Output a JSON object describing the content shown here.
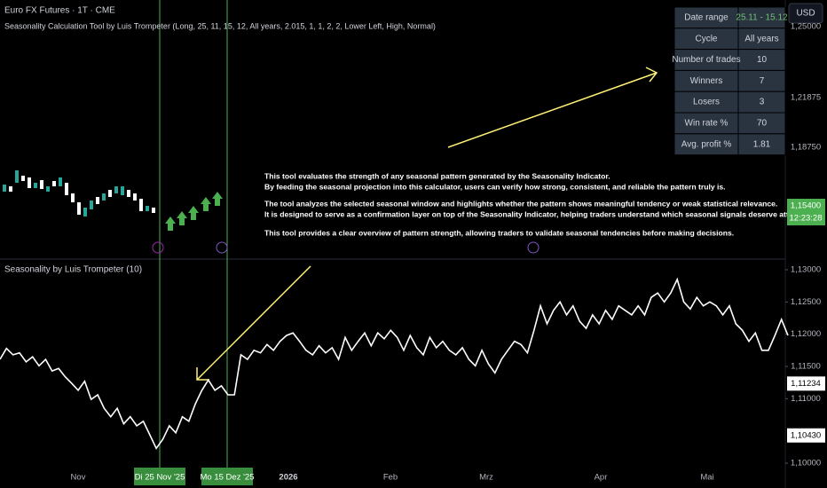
{
  "header": {
    "symbol": "Euro FX Futures · 1T · CME",
    "indicator": "Seasonality Calculation Tool by Luis Trompeter (Long, 25, 11, 15, 12, All years, 2.015, 1, 1, 2, 2, Lower Left, High, Normal)",
    "currency": "USD"
  },
  "table": {
    "rows": [
      [
        "Date range",
        "25.11 - 15.12"
      ],
      [
        "Cycle",
        "All years"
      ],
      [
        "Number of trades",
        "10"
      ],
      [
        "Winners",
        "7"
      ],
      [
        "Losers",
        "3"
      ],
      [
        "Win rate %",
        "70"
      ],
      [
        "Avg. profit %",
        "1.81"
      ]
    ]
  },
  "annotation": {
    "lines": [
      "This tool evaluates the strength of any seasonal pattern generated by the Seasonality Indicator.",
      "By feeding the seasonal projection into this calculator, users can verify how strong, consistent, and reliable the pattern truly is.",
      "The tool analyzes the selected seasonal window and highlights whether the pattern shows meaningful tendency or weak statistical relevance.",
      "It is designed to serve as a confirmation layer on top of the Seasonality Indicator, helping traders understand which seasonal signals deserve attention.",
      "This tool provides a clear overview of pattern strength, allowing traders to validate seasonal tendencies before making decisions."
    ]
  },
  "price_axis_top": {
    "labels": [
      "1,25000",
      "1,21875",
      "1,18750"
    ],
    "last_price": "1,15400",
    "countdown": "12:23:28"
  },
  "time_axis": {
    "labels": [
      "Nov",
      "2026",
      "Feb",
      "Mrz",
      "Apr",
      "Mai"
    ],
    "markers": [
      "Di 25 Nov '25",
      "Mo 15 Dez '25"
    ]
  },
  "chart_data": {
    "type": "line",
    "title": "Seasonality by Luis Trompeter (10)",
    "color": "#ffffff",
    "values": [
      1.1161,
      1.1178,
      1.1168,
      1.1171,
      1.1157,
      1.1165,
      1.1151,
      1.1161,
      1.1143,
      1.1147,
      1.1134,
      1.1124,
      1.1113,
      1.1127,
      1.1099,
      1.1106,
      1.1085,
      1.1072,
      1.1085,
      1.1061,
      1.1072,
      1.1058,
      1.1065,
      1.1044,
      1.1023,
      1.1037,
      1.1058,
      1.1047,
      1.1072,
      1.1065,
      1.1092,
      1.1113,
      1.1129,
      1.1113,
      1.112,
      1.1106,
      1.1106,
      1.1168,
      1.1161,
      1.1175,
      1.1171,
      1.1184,
      1.1175,
      1.1189,
      1.1198,
      1.1202,
      1.1189,
      1.1175,
      1.1168,
      1.1182,
      1.1171,
      1.1179,
      1.1161,
      1.1195,
      1.1175,
      1.1189,
      1.1202,
      1.1182,
      1.1202,
      1.1193,
      1.1206,
      1.1195,
      1.1175,
      1.1198,
      1.1179,
      1.1168,
      1.1195,
      1.1179,
      1.1189,
      1.1175,
      1.1168,
      1.1179,
      1.1161,
      1.1151,
      1.1175,
      1.1154,
      1.114,
      1.1161,
      1.1175,
      1.1189,
      1.1184,
      1.1171,
      1.1206,
      1.1244,
      1.1216,
      1.1237,
      1.125,
      1.123,
      1.1244,
      1.122,
      1.1209,
      1.123,
      1.1216,
      1.1237,
      1.1223,
      1.1244,
      1.1237,
      1.123,
      1.1244,
      1.123,
      1.1257,
      1.1264,
      1.125,
      1.1264,
      1.1285,
      1.125,
      1.1239,
      1.1257,
      1.1244,
      1.125,
      1.1244,
      1.123,
      1.1244,
      1.1216,
      1.1206,
      1.1189,
      1.1202,
      1.1175,
      1.1175,
      1.1198,
      1.1223,
      1.1198
    ],
    "ylim": [
      1.1,
      1.13
    ],
    "yticks": [
      {
        "value": 1.13,
        "label": "1,13000"
      },
      {
        "value": 1.125,
        "label": "1,12500"
      },
      {
        "value": 1.12,
        "label": "1,12000"
      },
      {
        "value": 1.115,
        "label": "1,11500"
      },
      {
        "value": 1.11,
        "label": "1,11000"
      },
      {
        "value": 1.1,
        "label": "1,10000"
      }
    ],
    "price_labels": [
      {
        "value": 1.11234,
        "label": "1,11234"
      },
      {
        "value": 1.1043,
        "label": "1,10430"
      }
    ]
  }
}
